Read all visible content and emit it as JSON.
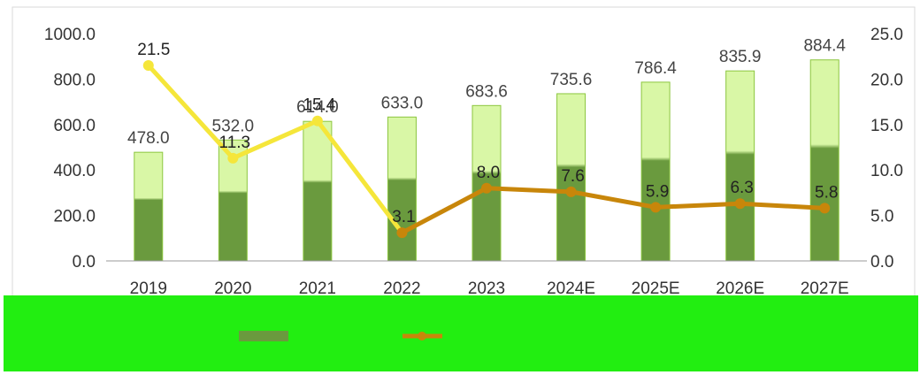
{
  "chart_data": {
    "type": "bar",
    "categories": [
      "2019",
      "2020",
      "2021",
      "2022",
      "2023",
      "2024E",
      "2025E",
      "2026E",
      "2027E"
    ],
    "series": [
      {
        "type": "bar",
        "axis": "left",
        "values": [
          478.0,
          532.0,
          614.0,
          633.0,
          683.6,
          735.6,
          786.4,
          835.9,
          884.4
        ],
        "labels": [
          "478.0",
          "532.0",
          "614.0",
          "633.0",
          "683.6",
          "735.6",
          "786.4",
          "835.9",
          "884.4"
        ]
      },
      {
        "type": "line",
        "axis": "right",
        "values": [
          21.5,
          11.3,
          15.4,
          3.1,
          8.0,
          7.6,
          5.9,
          6.3,
          5.8
        ],
        "labels": [
          "21.5",
          "11.3",
          "15.4",
          "3.1",
          "8.0",
          "7.6",
          "5.9",
          "6.3",
          "5.8"
        ]
      }
    ],
    "y_left": {
      "min": 0,
      "max": 1000,
      "step": 200,
      "tick_labels": [
        "0.0",
        "200.0",
        "400.0",
        "600.0",
        "800.0",
        "1000.0"
      ]
    },
    "y_right": {
      "min": 0,
      "max": 25,
      "step": 5,
      "tick_labels": [
        "0.0",
        "5.0",
        "10.0",
        "15.0",
        "20.0",
        "25.0"
      ]
    },
    "grid": false,
    "legend_position": "bottom",
    "colors": {
      "bar_fill": "#6a9a3e",
      "bar_fill_light": "#d9f7a6",
      "line": "#c8860a",
      "line_light": "#f5e63a",
      "legend_band": "#22ee11",
      "baseline": "#999999"
    }
  }
}
